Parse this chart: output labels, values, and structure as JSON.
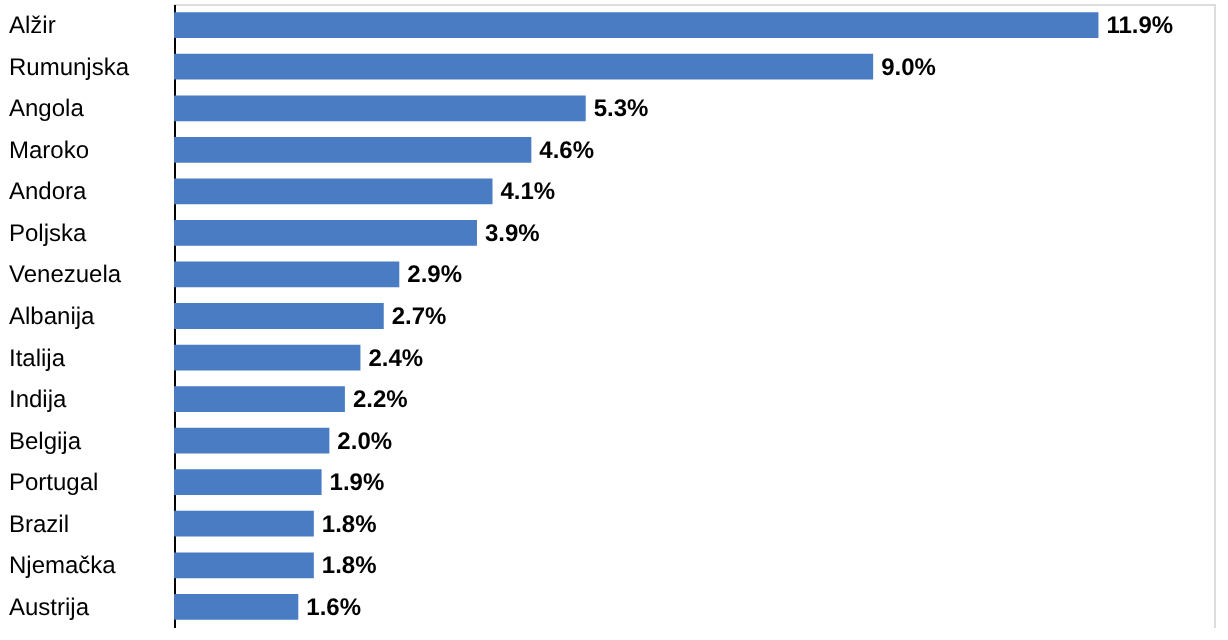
{
  "chart_data": {
    "type": "bar",
    "orientation": "horizontal",
    "categories": [
      "Alžir",
      "Rumunjska",
      "Angola",
      "Maroko",
      "Andora",
      "Poljska",
      "Venezuela",
      "Albanija",
      "Italija",
      "Indija",
      "Belgija",
      "Portugal",
      "Brazil",
      "Njemačka",
      "Austrija"
    ],
    "values": [
      11.9,
      9.0,
      5.3,
      4.6,
      4.1,
      3.9,
      2.9,
      2.7,
      2.4,
      2.2,
      2.0,
      1.9,
      1.8,
      1.8,
      1.6
    ],
    "value_labels": [
      "11.9%",
      "9.0%",
      "5.3%",
      "4.6%",
      "4.1%",
      "3.9%",
      "2.9%",
      "2.7%",
      "2.4%",
      "2.2%",
      "2.0%",
      "1.9%",
      "1.8%",
      "1.8%",
      "1.6%"
    ],
    "color": "#4a7cc4"
  }
}
